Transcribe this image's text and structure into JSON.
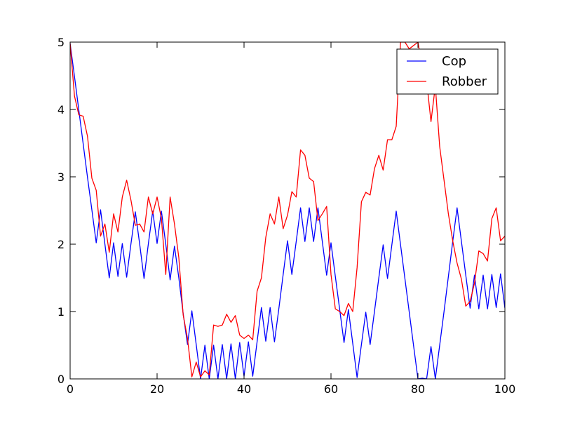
{
  "chart_data": {
    "type": "line",
    "title": "",
    "xlabel": "",
    "ylabel": "",
    "xlim": [
      0,
      100
    ],
    "ylim": [
      0,
      5
    ],
    "xticks": [
      "0",
      "20",
      "40",
      "60",
      "80",
      "100"
    ],
    "yticks": [
      "0",
      "1",
      "2",
      "3",
      "4",
      "5"
    ],
    "grid": false,
    "legend_placement": "top-right",
    "series": [
      {
        "name": "Cop",
        "color": "#0000ff",
        "points": [
          [
            0,
            4.98
          ],
          [
            1,
            4.49
          ],
          [
            2,
            3.99
          ],
          [
            3,
            3.49
          ],
          [
            4,
            2.99
          ],
          [
            5,
            2.51
          ],
          [
            6,
            2.02
          ],
          [
            7,
            2.51
          ],
          [
            8,
            2.0
          ],
          [
            9,
            1.5
          ],
          [
            10,
            2.02
          ],
          [
            11,
            1.52
          ],
          [
            12,
            2.01
          ],
          [
            13,
            1.51
          ],
          [
            14,
            2.01
          ],
          [
            15,
            2.48
          ],
          [
            16,
            2.0
          ],
          [
            17,
            1.49
          ],
          [
            18,
            2.01
          ],
          [
            19,
            2.49
          ],
          [
            20,
            2.01
          ],
          [
            21,
            2.49
          ],
          [
            22,
            2.0
          ],
          [
            23,
            1.47
          ],
          [
            24,
            1.97
          ],
          [
            25,
            1.5
          ],
          [
            26,
            0.97
          ],
          [
            27,
            0.51
          ],
          [
            28,
            1.01
          ],
          [
            29,
            0.51
          ],
          [
            30,
            0.0
          ],
          [
            31,
            0.5
          ],
          [
            32,
            0.0
          ],
          [
            33,
            0.5
          ],
          [
            34,
            0.0
          ],
          [
            35,
            0.51
          ],
          [
            36,
            0.0
          ],
          [
            37,
            0.52
          ],
          [
            38,
            0.0
          ],
          [
            39,
            0.54
          ],
          [
            40,
            0.04
          ],
          [
            41,
            0.55
          ],
          [
            42,
            0.04
          ],
          [
            43,
            0.55
          ],
          [
            44,
            1.06
          ],
          [
            45,
            0.56
          ],
          [
            46,
            1.06
          ],
          [
            47,
            0.55
          ],
          [
            48,
            1.04
          ],
          [
            49,
            1.55
          ],
          [
            50,
            2.05
          ],
          [
            51,
            1.55
          ],
          [
            52,
            2.04
          ],
          [
            53,
            2.54
          ],
          [
            54,
            2.04
          ],
          [
            55,
            2.54
          ],
          [
            56,
            2.04
          ],
          [
            57,
            2.54
          ],
          [
            58,
            2.04
          ],
          [
            59,
            1.54
          ],
          [
            60,
            2.02
          ],
          [
            61,
            1.52
          ],
          [
            62,
            1.03
          ],
          [
            63,
            0.54
          ],
          [
            64,
            1.03
          ],
          [
            65,
            0.53
          ],
          [
            66,
            0.02
          ],
          [
            67,
            0.51
          ],
          [
            68,
            0.99
          ],
          [
            69,
            0.51
          ],
          [
            70,
            1.0
          ],
          [
            71,
            1.5
          ],
          [
            72,
            1.99
          ],
          [
            73,
            1.49
          ],
          [
            74,
            1.99
          ],
          [
            75,
            2.49
          ],
          [
            76,
            1.99
          ],
          [
            77,
            1.49
          ],
          [
            78,
            0.99
          ],
          [
            79,
            0.49
          ],
          [
            80,
            0.0
          ],
          [
            81,
            0.01
          ],
          [
            82,
            0.0
          ],
          [
            83,
            0.48
          ],
          [
            84,
            0.0
          ],
          [
            85,
            0.5
          ],
          [
            86,
            1.0
          ],
          [
            87,
            1.52
          ],
          [
            88,
            2.04
          ],
          [
            89,
            2.54
          ],
          [
            90,
            2.04
          ],
          [
            91,
            1.54
          ],
          [
            92,
            1.05
          ],
          [
            93,
            1.54
          ],
          [
            94,
            1.04
          ],
          [
            95,
            1.54
          ],
          [
            96,
            1.04
          ],
          [
            97,
            1.55
          ],
          [
            98,
            1.06
          ],
          [
            99,
            1.56
          ],
          [
            100,
            1.05
          ]
        ]
      },
      {
        "name": "Robber",
        "color": "#ff0000",
        "points": [
          [
            0,
            4.98
          ],
          [
            1,
            4.2
          ],
          [
            2,
            3.92
          ],
          [
            3,
            3.9
          ],
          [
            4,
            3.6
          ],
          [
            5,
            2.98
          ],
          [
            6,
            2.8
          ],
          [
            7,
            2.12
          ],
          [
            8,
            2.3
          ],
          [
            9,
            1.88
          ],
          [
            10,
            2.45
          ],
          [
            11,
            2.18
          ],
          [
            12,
            2.7
          ],
          [
            13,
            2.95
          ],
          [
            14,
            2.65
          ],
          [
            15,
            2.28
          ],
          [
            16,
            2.3
          ],
          [
            17,
            2.18
          ],
          [
            18,
            2.7
          ],
          [
            19,
            2.45
          ],
          [
            20,
            2.7
          ],
          [
            21,
            2.38
          ],
          [
            22,
            1.55
          ],
          [
            23,
            2.7
          ],
          [
            24,
            2.3
          ],
          [
            25,
            1.8
          ],
          [
            26,
            0.95
          ],
          [
            27,
            0.6
          ],
          [
            28,
            0.03
          ],
          [
            29,
            0.25
          ],
          [
            30,
            0.03
          ],
          [
            31,
            0.12
          ],
          [
            32,
            0.06
          ],
          [
            33,
            0.8
          ],
          [
            34,
            0.78
          ],
          [
            35,
            0.8
          ],
          [
            36,
            0.96
          ],
          [
            37,
            0.84
          ],
          [
            38,
            0.94
          ],
          [
            39,
            0.65
          ],
          [
            40,
            0.6
          ],
          [
            41,
            0.65
          ],
          [
            42,
            0.58
          ],
          [
            43,
            1.3
          ],
          [
            44,
            1.5
          ],
          [
            45,
            2.1
          ],
          [
            46,
            2.45
          ],
          [
            47,
            2.3
          ],
          [
            48,
            2.7
          ],
          [
            49,
            2.23
          ],
          [
            50,
            2.43
          ],
          [
            51,
            2.78
          ],
          [
            52,
            2.7
          ],
          [
            53,
            3.4
          ],
          [
            54,
            3.32
          ],
          [
            55,
            2.98
          ],
          [
            56,
            2.93
          ],
          [
            57,
            2.35
          ],
          [
            58,
            2.45
          ],
          [
            59,
            2.56
          ],
          [
            60,
            1.55
          ],
          [
            61,
            1.04
          ],
          [
            62,
            1.0
          ],
          [
            63,
            0.94
          ],
          [
            64,
            1.12
          ],
          [
            65,
            1.0
          ],
          [
            66,
            1.65
          ],
          [
            67,
            2.63
          ],
          [
            68,
            2.77
          ],
          [
            69,
            2.73
          ],
          [
            70,
            3.12
          ],
          [
            71,
            3.32
          ],
          [
            72,
            3.1
          ],
          [
            73,
            3.55
          ],
          [
            74,
            3.55
          ],
          [
            75,
            3.75
          ],
          [
            76,
            5.0
          ],
          [
            77,
            5.0
          ],
          [
            78,
            4.9
          ],
          [
            79,
            4.95
          ],
          [
            80,
            5.0
          ],
          [
            81,
            4.62
          ],
          [
            82,
            4.42
          ],
          [
            83,
            3.82
          ],
          [
            84,
            4.35
          ],
          [
            85,
            3.45
          ],
          [
            86,
            2.95
          ],
          [
            87,
            2.45
          ],
          [
            88,
            2.05
          ],
          [
            89,
            1.72
          ],
          [
            90,
            1.48
          ],
          [
            91,
            1.08
          ],
          [
            92,
            1.15
          ],
          [
            93,
            1.42
          ],
          [
            94,
            1.9
          ],
          [
            95,
            1.86
          ],
          [
            96,
            1.75
          ],
          [
            97,
            2.38
          ],
          [
            98,
            2.54
          ],
          [
            99,
            2.05
          ],
          [
            100,
            2.12
          ]
        ]
      }
    ]
  }
}
